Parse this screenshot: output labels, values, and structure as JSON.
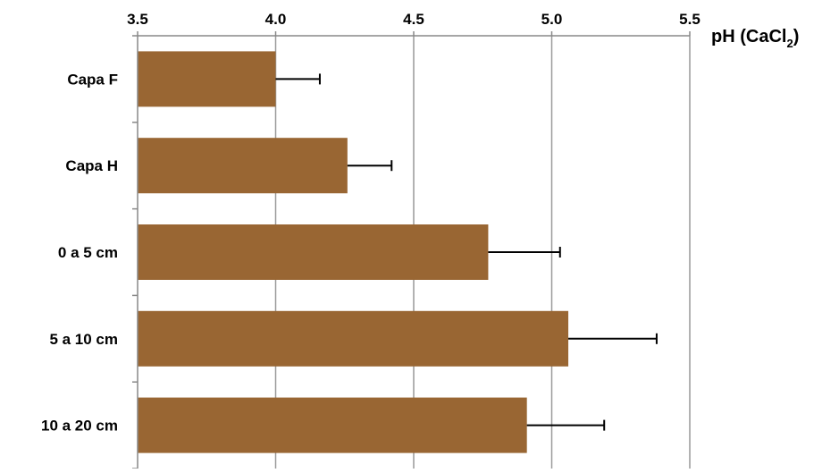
{
  "chart_data": {
    "type": "bar",
    "orientation": "horizontal",
    "categories": [
      "Capa F",
      "Capa H",
      "0 a 5 cm",
      "5 a 10 cm",
      "10 a 20 cm"
    ],
    "values": [
      4.0,
      4.26,
      4.77,
      5.06,
      4.91
    ],
    "error_upper": [
      0.16,
      0.16,
      0.26,
      0.32,
      0.28
    ],
    "xlabel": "pH (CaCl2)",
    "xlabel_main": "pH (CaCl",
    "xlabel_subscript": "2",
    "xlabel_suffix": ")",
    "xlim": [
      3.5,
      5.5
    ],
    "ticks": [
      3.5,
      4.0,
      4.5,
      5.0,
      5.5
    ],
    "tick_labels": [
      "3.5",
      "4.0",
      "4.5",
      "5.0",
      "5.5"
    ],
    "x_axis_position": "top",
    "grid": true,
    "bar_color": "#996633",
    "grid_color": "#999999",
    "axis_color": "#888888",
    "error_bar_color": "#000000"
  }
}
